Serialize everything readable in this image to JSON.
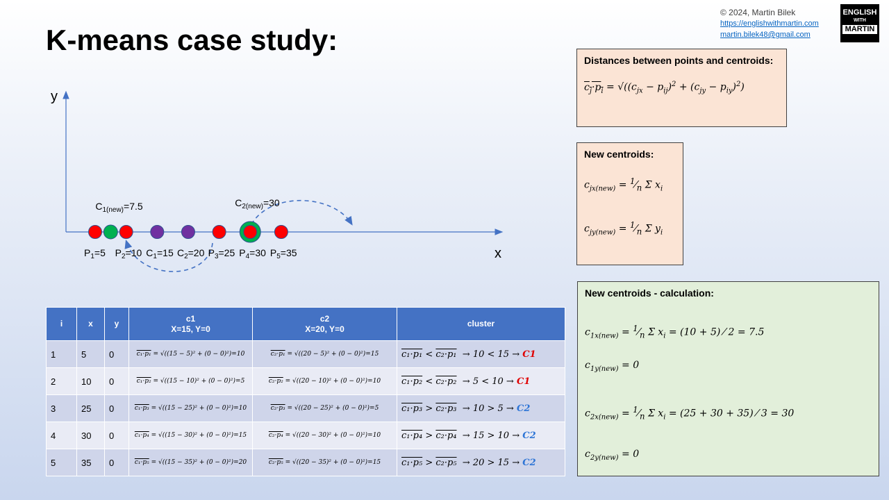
{
  "title": "K-means case study:",
  "credits": {
    "copyright": "© 2024,  Martin Bilek",
    "website": "https://englishwithmartin.com",
    "email": "martin.bilek48@gmail.com"
  },
  "logo": {
    "line1": "ENGLISH",
    "line2": "WITH",
    "line3": "MARTIN"
  },
  "axis": {
    "x_label": "x",
    "y_label": "y"
  },
  "points": [
    {
      "label": "P",
      "sub": "1",
      "value": "=5",
      "x": 5,
      "kind": "point"
    },
    {
      "label": "P",
      "sub": "2",
      "value": "=10",
      "x": 10,
      "kind": "point"
    },
    {
      "label": "C",
      "sub": "1",
      "value": "=15",
      "x": 15,
      "kind": "centroid"
    },
    {
      "label": "C",
      "sub": "2",
      "value": "=20",
      "x": 20,
      "kind": "centroid"
    },
    {
      "label": "P",
      "sub": "3",
      "value": "=25",
      "x": 25,
      "kind": "point"
    },
    {
      "label": "P",
      "sub": "4",
      "value": "=30",
      "x": 30,
      "kind": "point"
    },
    {
      "label": "P",
      "sub": "5",
      "value": "=35",
      "x": 35,
      "kind": "point"
    }
  ],
  "new_centroids": [
    {
      "label": "C",
      "sub": "1(new)",
      "value": "=7.5",
      "x": 7.5
    },
    {
      "label": "C",
      "sub": "2(new)",
      "value": "=30",
      "x": 30
    }
  ],
  "colors": {
    "point": "#ff0000",
    "centroid": "#7030a0",
    "new_centroid": "#00b050",
    "axis": "#4472c4",
    "header": "#4472c4"
  },
  "box_distances": {
    "heading": "Distances between points and centroids:"
  },
  "box_new": {
    "heading": "New centroids:"
  },
  "box_calc": {
    "heading": "New centroids - calculation:"
  },
  "table": {
    "headers": {
      "i": "i",
      "x": "x",
      "y": "y",
      "c1_title": "c1",
      "c1_sub": "X=15, Y=0",
      "c2_title": "c2",
      "c2_sub": "X=20, Y=0",
      "cluster": "cluster"
    },
    "rows": [
      {
        "i": "1",
        "x": "5",
        "y": "0",
        "c1": "√((15 − 5)² + (0 − 0)²)=10",
        "c2": "√((20 − 5)² + (0 − 0)²)=15",
        "cmp": "<",
        "rel": "→ 10 < 15 →",
        "cl": "C1",
        "p": "1"
      },
      {
        "i": "2",
        "x": "10",
        "y": "0",
        "c1": "√((15 − 10)² + (0 − 0)²)=5",
        "c2": "√((20 − 10)² + (0 − 0)²)=10",
        "cmp": "<",
        "rel": "→ 5 < 10 →",
        "cl": "C1",
        "p": "2"
      },
      {
        "i": "3",
        "x": "25",
        "y": "0",
        "c1": "√((15 − 25)² + (0 − 0)²)=10",
        "c2": "√((20 − 25)² + (0 − 0)²)=5",
        "cmp": ">",
        "rel": "→ 10 > 5 →",
        "cl": "C2",
        "p": "3"
      },
      {
        "i": "4",
        "x": "30",
        "y": "0",
        "c1": "√((15 − 30)² + (0 − 0)²)=15",
        "c2": "√((20 − 30)² + (0 − 0)²)=10",
        "cmp": ">",
        "rel": "→ 15 > 10 →",
        "cl": "C2",
        "p": "4"
      },
      {
        "i": "5",
        "x": "35",
        "y": "0",
        "c1": "√((15 − 35)² + (0 − 0)²)=20",
        "c2": "√((20 − 35)² + (0 − 0)²)=15",
        "cmp": ">",
        "rel": "→ 20 > 15 →",
        "cl": "C2",
        "p": "5"
      }
    ]
  }
}
